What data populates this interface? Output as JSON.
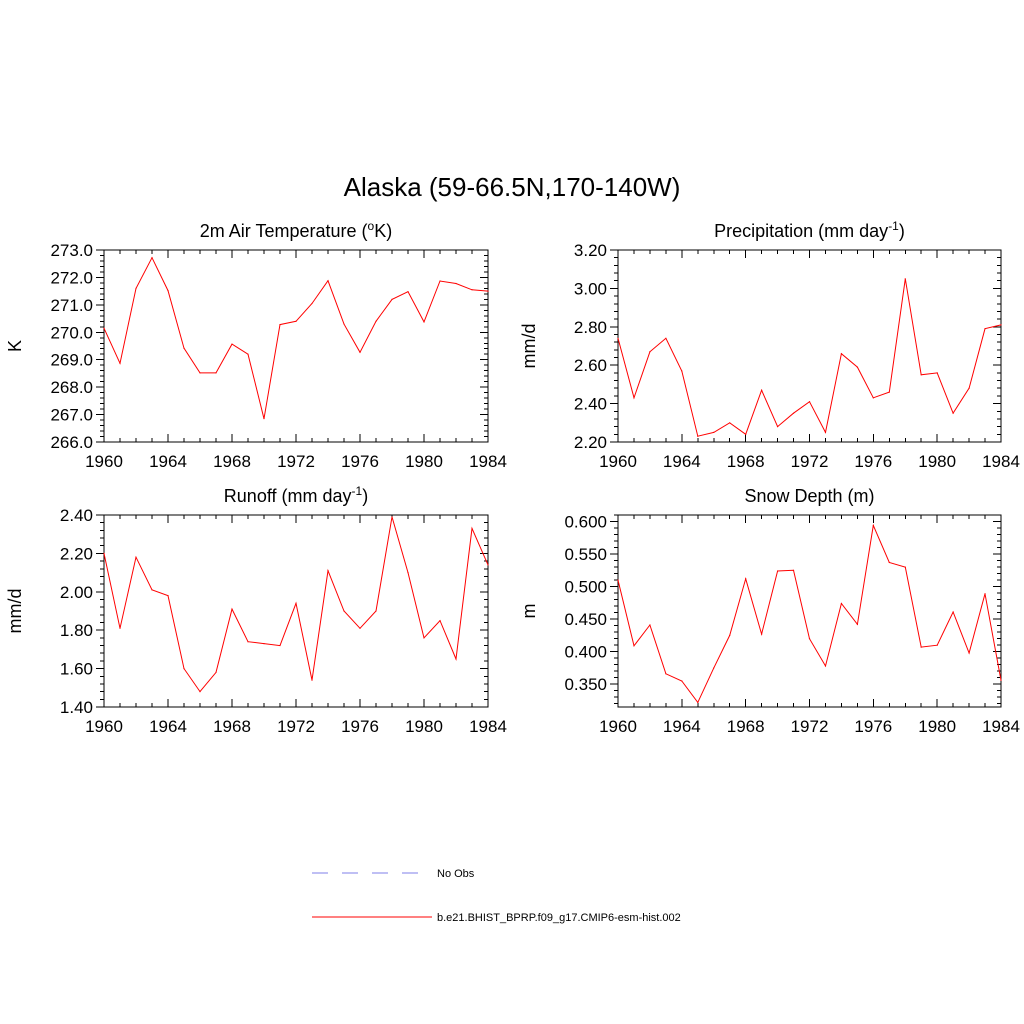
{
  "figure": {
    "title": "Alaska (59-66.5N,170-140W)"
  },
  "legend": {
    "placement": "bottom-center",
    "entries": [
      {
        "label": "No Obs",
        "color": "#9999ee",
        "style": "dashed"
      },
      {
        "label": "b.e21.BHIST_BPRP.f09_g17.CMIP6-esm-hist.002",
        "color": "#ff0000",
        "style": "solid"
      }
    ]
  },
  "chart_data": [
    {
      "type": "line",
      "title": "2m Air Temperature (",
      "title_sup": "o",
      "title_after_sup": "K)",
      "ylabel": "K",
      "xlabel": "",
      "xlim": [
        1960,
        1984
      ],
      "ylim": [
        266.0,
        273.0
      ],
      "xticks": [
        1960,
        1964,
        1968,
        1972,
        1976,
        1980,
        1984
      ],
      "xtick_labels": [
        "1960",
        "1964",
        "1968",
        "1972",
        "1976",
        "1980",
        "1984"
      ],
      "yticks": [
        266.0,
        267.0,
        268.0,
        269.0,
        270.0,
        271.0,
        272.0,
        273.0
      ],
      "ytick_labels": [
        "266.0",
        "267.0",
        "268.0",
        "269.0",
        "270.0",
        "271.0",
        "272.0",
        "273.0"
      ],
      "grid": false,
      "x": [
        1960,
        1961,
        1962,
        1963,
        1964,
        1965,
        1966,
        1967,
        1968,
        1969,
        1970,
        1971,
        1972,
        1973,
        1974,
        1975,
        1976,
        1977,
        1978,
        1979,
        1980,
        1981,
        1982,
        1983,
        1984
      ],
      "series": [
        {
          "color": "#ff0000",
          "values": [
            270.15,
            268.87,
            271.6,
            272.72,
            271.52,
            269.42,
            268.52,
            268.52,
            269.57,
            269.2,
            266.85,
            270.28,
            270.4,
            271.05,
            271.88,
            270.3,
            269.27,
            270.4,
            271.2,
            271.48,
            270.38,
            271.87,
            271.78,
            271.55,
            271.5
          ]
        }
      ]
    },
    {
      "type": "line",
      "title": "Precipitation (mm day",
      "title_sup": "-1",
      "title_after_sup": ")",
      "ylabel": "mm/d",
      "xlabel": "",
      "xlim": [
        1960,
        1984
      ],
      "ylim": [
        2.2,
        3.2
      ],
      "xticks": [
        1960,
        1964,
        1968,
        1972,
        1976,
        1980,
        1984
      ],
      "xtick_labels": [
        "1960",
        "1964",
        "1968",
        "1972",
        "1976",
        "1980",
        "1984"
      ],
      "yticks": [
        2.2,
        2.4,
        2.6,
        2.8,
        3.0,
        3.2
      ],
      "ytick_labels": [
        "2.20",
        "2.40",
        "2.60",
        "2.80",
        "3.00",
        "3.20"
      ],
      "grid": false,
      "x": [
        1960,
        1961,
        1962,
        1963,
        1964,
        1965,
        1966,
        1967,
        1968,
        1969,
        1970,
        1971,
        1972,
        1973,
        1974,
        1975,
        1976,
        1977,
        1978,
        1979,
        1980,
        1981,
        1982,
        1983,
        1984
      ],
      "series": [
        {
          "color": "#ff0000",
          "values": [
            2.74,
            2.43,
            2.67,
            2.74,
            2.57,
            2.23,
            2.25,
            2.3,
            2.24,
            2.47,
            2.28,
            2.35,
            2.41,
            2.25,
            2.66,
            2.59,
            2.43,
            2.46,
            3.05,
            2.55,
            2.56,
            2.35,
            2.48,
            2.79,
            2.81
          ]
        }
      ]
    },
    {
      "type": "line",
      "title": "Runoff (mm day",
      "title_sup": "-1",
      "title_after_sup": ")",
      "ylabel": "mm/d",
      "xlabel": "",
      "xlim": [
        1960,
        1984
      ],
      "ylim": [
        1.4,
        2.4
      ],
      "xticks": [
        1960,
        1964,
        1968,
        1972,
        1976,
        1980,
        1984
      ],
      "xtick_labels": [
        "1960",
        "1964",
        "1968",
        "1972",
        "1976",
        "1980",
        "1984"
      ],
      "yticks": [
        1.4,
        1.6,
        1.8,
        2.0,
        2.2,
        2.4
      ],
      "ytick_labels": [
        "1.40",
        "1.60",
        "1.80",
        "2.00",
        "2.20",
        "2.40"
      ],
      "grid": false,
      "x": [
        1960,
        1961,
        1962,
        1963,
        1964,
        1965,
        1966,
        1967,
        1968,
        1969,
        1970,
        1971,
        1972,
        1973,
        1974,
        1975,
        1976,
        1977,
        1978,
        1979,
        1980,
        1981,
        1982,
        1983,
        1984
      ],
      "series": [
        {
          "color": "#ff0000",
          "values": [
            2.2,
            1.81,
            2.18,
            2.01,
            1.98,
            1.6,
            1.48,
            1.58,
            1.91,
            1.74,
            1.73,
            1.72,
            1.94,
            1.54,
            2.11,
            1.9,
            1.81,
            1.9,
            2.39,
            2.1,
            1.76,
            1.85,
            1.65,
            2.33,
            2.14
          ]
        }
      ]
    },
    {
      "type": "line",
      "title": "Snow Depth (m)",
      "ylabel": "m",
      "xlabel": "",
      "xlim": [
        1960,
        1984
      ],
      "ylim": [
        0.315,
        0.61
      ],
      "xticks": [
        1960,
        1964,
        1968,
        1972,
        1976,
        1980,
        1984
      ],
      "xtick_labels": [
        "1960",
        "1964",
        "1968",
        "1972",
        "1976",
        "1980",
        "1984"
      ],
      "yticks": [
        0.35,
        0.4,
        0.45,
        0.5,
        0.55,
        0.6
      ],
      "ytick_labels": [
        "0.350",
        "0.400",
        "0.450",
        "0.500",
        "0.550",
        "0.600"
      ],
      "grid": false,
      "x": [
        1960,
        1961,
        1962,
        1963,
        1964,
        1965,
        1966,
        1967,
        1968,
        1969,
        1970,
        1971,
        1972,
        1973,
        1974,
        1975,
        1976,
        1977,
        1978,
        1979,
        1980,
        1981,
        1982,
        1983,
        1984
      ],
      "series": [
        {
          "color": "#ff0000",
          "values": [
            0.51,
            0.409,
            0.441,
            0.366,
            0.355,
            0.322,
            0.375,
            0.425,
            0.512,
            0.427,
            0.524,
            0.525,
            0.42,
            0.378,
            0.474,
            0.442,
            0.594,
            0.537,
            0.53,
            0.407,
            0.41,
            0.461,
            0.398,
            0.489,
            0.356
          ]
        }
      ]
    }
  ]
}
